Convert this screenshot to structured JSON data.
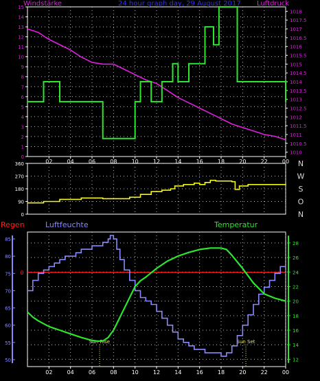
{
  "colors": {
    "background": "#000000",
    "axis": "#ffffff",
    "grid": "#bdbdbd",
    "wind_speed": "#2ee62e",
    "pressure": "#e01fe0",
    "title": "#3030ff",
    "wind_dir": "#f5f520",
    "compass": "#d8d8d8",
    "rain": "#ff2020",
    "humidity": "#8a8aff",
    "temperature": "#2ee62e",
    "sun_label": "#e8e860"
  },
  "chart_data": [
    {
      "id": "wind-pressure",
      "type": "line",
      "title": "24 hour graph day, 29 August 2017",
      "label_left": "Windstärke",
      "label_right": "Luftdruck",
      "x_ticks": [
        "02",
        "04",
        "06",
        "08",
        "10",
        "12",
        "14",
        "16",
        "18",
        "20",
        "22",
        "00"
      ],
      "xlim": [
        0,
        24
      ],
      "y_left": {
        "min": 0,
        "max": 15,
        "ticks": [
          0,
          1,
          2,
          3,
          4,
          5,
          6,
          7,
          8,
          9,
          10,
          11,
          12,
          13,
          14,
          15
        ]
      },
      "y_right": {
        "min": 1009.75,
        "max": 1018.25,
        "ticks": [
          "1010",
          "1010.5",
          "1011",
          "1011.5",
          "1012",
          "1012.5",
          "1013",
          "1013.5",
          "1014",
          "1014.5",
          "1015",
          "1015.5",
          "1016",
          "1016.5",
          "1017",
          "1017.5",
          "1018"
        ]
      },
      "series": [
        {
          "key": "wind_speed",
          "axis": "left",
          "step": true,
          "x": [
            0,
            1.5,
            3.0,
            7.0,
            10.0,
            10.5,
            11.5,
            12.5,
            13.5,
            14.0,
            15.0,
            16.5,
            17.3,
            17.8,
            19.5,
            24
          ],
          "y": [
            5.5,
            7.5,
            5.5,
            1.8,
            5.5,
            7.5,
            5.5,
            7.5,
            9.3,
            7.5,
            9.3,
            13.0,
            11.2,
            15.0,
            7.5,
            5.5
          ]
        },
        {
          "key": "pressure",
          "axis": "right",
          "step": false,
          "x": [
            0,
            1,
            2,
            3,
            4,
            5,
            6,
            7,
            8,
            9,
            10,
            11,
            12,
            13,
            14,
            15,
            16,
            17,
            18,
            19,
            20,
            21,
            22,
            23,
            24
          ],
          "y": [
            1017.0,
            1016.8,
            1016.4,
            1016.1,
            1015.8,
            1015.4,
            1015.1,
            1015.0,
            1015.0,
            1014.7,
            1014.4,
            1014.1,
            1013.9,
            1013.5,
            1013.1,
            1012.8,
            1012.5,
            1012.2,
            1011.9,
            1011.6,
            1011.4,
            1011.2,
            1011.0,
            1010.9,
            1010.7
          ]
        }
      ]
    },
    {
      "id": "wind-direction",
      "type": "line",
      "x_ticks": [
        "02",
        "04",
        "06",
        "08",
        "10",
        "12",
        "14",
        "16",
        "18",
        "20",
        "22",
        "00"
      ],
      "xlim": [
        0,
        24
      ],
      "y": {
        "min": 0,
        "max": 360,
        "ticks": [
          0,
          90,
          180,
          270,
          360
        ]
      },
      "compass": [
        "N",
        "W",
        "S",
        "O",
        "N"
      ],
      "series": [
        {
          "key": "wind_dir",
          "step": true,
          "x": [
            0,
            1.5,
            3.0,
            5.0,
            7.0,
            9.5,
            10.5,
            11.5,
            12.5,
            13.3,
            13.7,
            14.5,
            15.5,
            16.0,
            16.5,
            17.0,
            17.5,
            19.0,
            19.3,
            19.7,
            20.5,
            24
          ],
          "y": [
            80,
            90,
            105,
            115,
            110,
            120,
            140,
            160,
            170,
            180,
            200,
            210,
            220,
            210,
            225,
            240,
            235,
            230,
            175,
            200,
            210,
            215
          ]
        }
      ]
    },
    {
      "id": "rain-humidity-temp",
      "type": "line",
      "label_rain": "Regen",
      "label_humidity": "Luftfeuchte",
      "label_temperature": "Temperatur",
      "x_ticks": [
        "02",
        "04",
        "06",
        "08",
        "10",
        "12",
        "14",
        "16",
        "18",
        "20",
        "22",
        "00"
      ],
      "xlim": [
        0,
        24
      ],
      "y_left": {
        "min": 48,
        "max": 87,
        "ticks": [
          50,
          55,
          60,
          65,
          70,
          75,
          80,
          85
        ]
      },
      "y_right": {
        "min": 11,
        "max": 29.5,
        "ticks": [
          12,
          14,
          16,
          18,
          20,
          22,
          24,
          26,
          28
        ]
      },
      "rain_zero_label": "0",
      "rain_level_percent": 70,
      "annotations": [
        {
          "label": "Sun Rise",
          "x": 6.7
        },
        {
          "label": "Sun Set",
          "x": 20.3
        }
      ],
      "series": [
        {
          "key": "humidity",
          "axis": "left",
          "step": true,
          "x": [
            0,
            0.5,
            1,
            1.5,
            2,
            2.5,
            3,
            3.5,
            4,
            4.5,
            5,
            5.5,
            6,
            6.5,
            7,
            7.3,
            7.5,
            7.7,
            8.0,
            8.3,
            8.6,
            9,
            9.5,
            10,
            10.5,
            11,
            11.5,
            12,
            12.5,
            13,
            13.5,
            14,
            14.5,
            15,
            15.5,
            16,
            16.5,
            17,
            17.5,
            18,
            18.5,
            19,
            19.5,
            20,
            20.5,
            21,
            21.5,
            22,
            22.5,
            23,
            23.5,
            24
          ],
          "y": [
            70,
            73,
            75,
            76,
            77,
            78,
            79,
            80,
            80,
            81,
            82,
            82,
            83,
            83,
            84,
            84,
            85,
            86,
            85,
            82,
            79,
            76,
            73,
            70,
            68,
            67,
            66,
            64,
            62,
            60,
            58,
            56,
            55,
            54,
            53,
            53,
            52,
            52,
            52,
            51,
            52,
            54,
            57,
            60,
            63,
            66,
            69,
            71,
            73,
            75,
            77,
            77
          ]
        },
        {
          "key": "temperature",
          "axis": "right",
          "step": false,
          "x": [
            0,
            0.5,
            1,
            2,
            3,
            4,
            5,
            6,
            6.5,
            7,
            7.5,
            8,
            8.5,
            9,
            9.5,
            10,
            10.5,
            11,
            12,
            13,
            14,
            15,
            16,
            17,
            18,
            18.5,
            19,
            20,
            21,
            22,
            23,
            24
          ],
          "y": [
            18.5,
            17.8,
            17.3,
            16.5,
            16.0,
            15.5,
            15.0,
            14.6,
            14.5,
            14.5,
            15.0,
            16.0,
            17.5,
            19.0,
            20.5,
            22.0,
            22.8,
            23.3,
            24.5,
            25.5,
            26.2,
            26.7,
            27.1,
            27.3,
            27.3,
            27.1,
            26.3,
            24.5,
            22.5,
            21.0,
            20.4,
            20.0
          ]
        }
      ]
    }
  ]
}
